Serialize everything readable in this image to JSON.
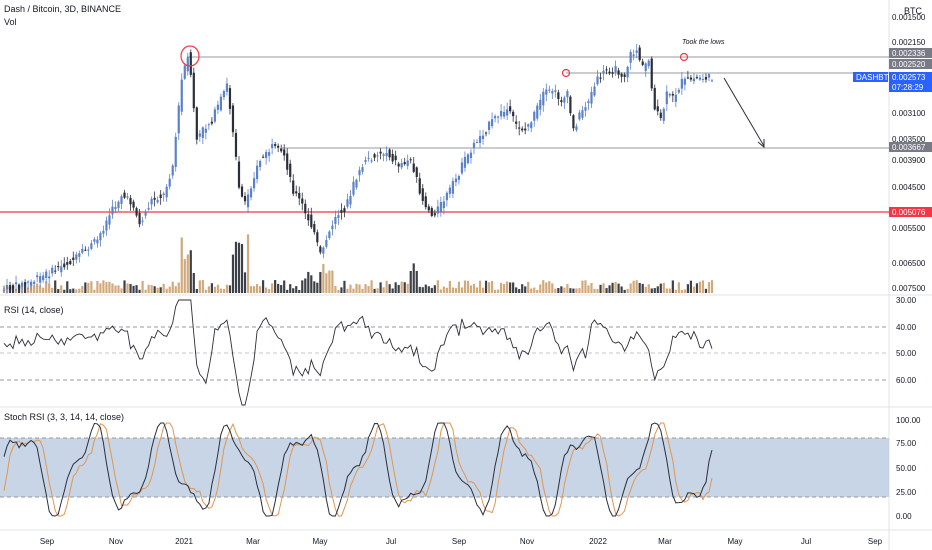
{
  "header": {
    "symbol_title": "Dash / Bitcoin, 3D, BINANCE",
    "volume_label": "Vol",
    "currency": "BTC"
  },
  "price_pane": {
    "axis_ticks": [
      "0.001500",
      "0.002150",
      "0.002520",
      "0.003100",
      "0.003500",
      "0.003900",
      "0.004500",
      "0.005500",
      "0.006500",
      "0.007500"
    ],
    "price_labels": [
      {
        "text": "0.002336",
        "color": "#787b86"
      },
      {
        "text": "0.002520",
        "color": "#787b86"
      },
      {
        "text": "DASHBTC",
        "color": "#2962ff"
      },
      {
        "text": "0.002573",
        "color": "#2962ff"
      },
      {
        "text": "07:28:29",
        "color": "#2962ff"
      },
      {
        "text": "0.003667",
        "color": "#787b86"
      },
      {
        "text": "0.005076",
        "color": "#f23645"
      }
    ],
    "annotation": "Took the lows"
  },
  "rsi_pane": {
    "title": "RSI (14, close)",
    "axis_ticks": [
      "30.00",
      "40.00",
      "50.00",
      "60.00"
    ]
  },
  "stoch_pane": {
    "title": "Stoch RSI (3, 3, 14, 14, close)",
    "axis_ticks": [
      "100.00",
      "75.00",
      "50.00",
      "25.00",
      "0.00"
    ]
  },
  "time_axis": [
    "Sep",
    "Nov",
    "2021",
    "Mar",
    "May",
    "Jul",
    "Sep",
    "Nov",
    "2022",
    "Mar",
    "May",
    "Jul",
    "Sep"
  ],
  "colors": {
    "up": "#5b82c9",
    "down": "#2a2e39",
    "vol_up": "#d1a97a",
    "vol_down": "#3d4046",
    "line": "#2a2e39",
    "stoch_k": "#2a2e39",
    "stoch_d": "#e0964f",
    "red_line": "#f23645",
    "band": "#b5c7df"
  }
}
